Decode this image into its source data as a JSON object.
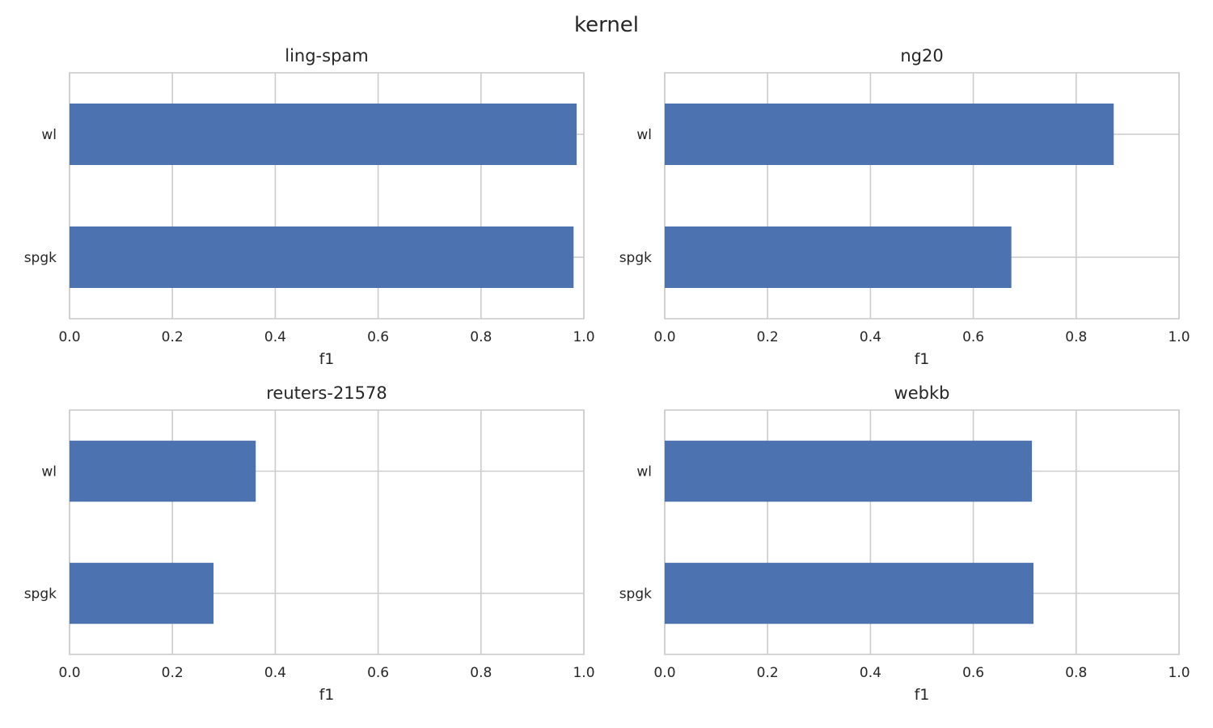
{
  "figure": {
    "suptitle": "kernel"
  },
  "chart_data": [
    {
      "type": "bar",
      "orientation": "horizontal",
      "title": "ling-spam",
      "categories": [
        "wl",
        "spgk"
      ],
      "values": [
        0.986,
        0.98
      ],
      "xlabel": "f1",
      "xlim": [
        0,
        1
      ],
      "xticks": [
        "0.0",
        "0.2",
        "0.4",
        "0.6",
        "0.8",
        "1.0"
      ],
      "grid": true,
      "color": "#4c72b0"
    },
    {
      "type": "bar",
      "orientation": "horizontal",
      "title": "ng20",
      "categories": [
        "wl",
        "spgk"
      ],
      "values": [
        0.873,
        0.674
      ],
      "xlabel": "f1",
      "xlim": [
        0,
        1
      ],
      "xticks": [
        "0.0",
        "0.2",
        "0.4",
        "0.6",
        "0.8",
        "1.0"
      ],
      "grid": true,
      "color": "#4c72b0"
    },
    {
      "type": "bar",
      "orientation": "horizontal",
      "title": "reuters-21578",
      "categories": [
        "wl",
        "spgk"
      ],
      "values": [
        0.362,
        0.28
      ],
      "xlabel": "f1",
      "xlim": [
        0,
        1
      ],
      "xticks": [
        "0.0",
        "0.2",
        "0.4",
        "0.6",
        "0.8",
        "1.0"
      ],
      "grid": true,
      "color": "#4c72b0"
    },
    {
      "type": "bar",
      "orientation": "horizontal",
      "title": "webkb",
      "categories": [
        "wl",
        "spgk"
      ],
      "values": [
        0.714,
        0.717
      ],
      "xlabel": "f1",
      "xlim": [
        0,
        1
      ],
      "xticks": [
        "0.0",
        "0.2",
        "0.4",
        "0.6",
        "0.8",
        "1.0"
      ],
      "grid": true,
      "color": "#4c72b0"
    }
  ]
}
